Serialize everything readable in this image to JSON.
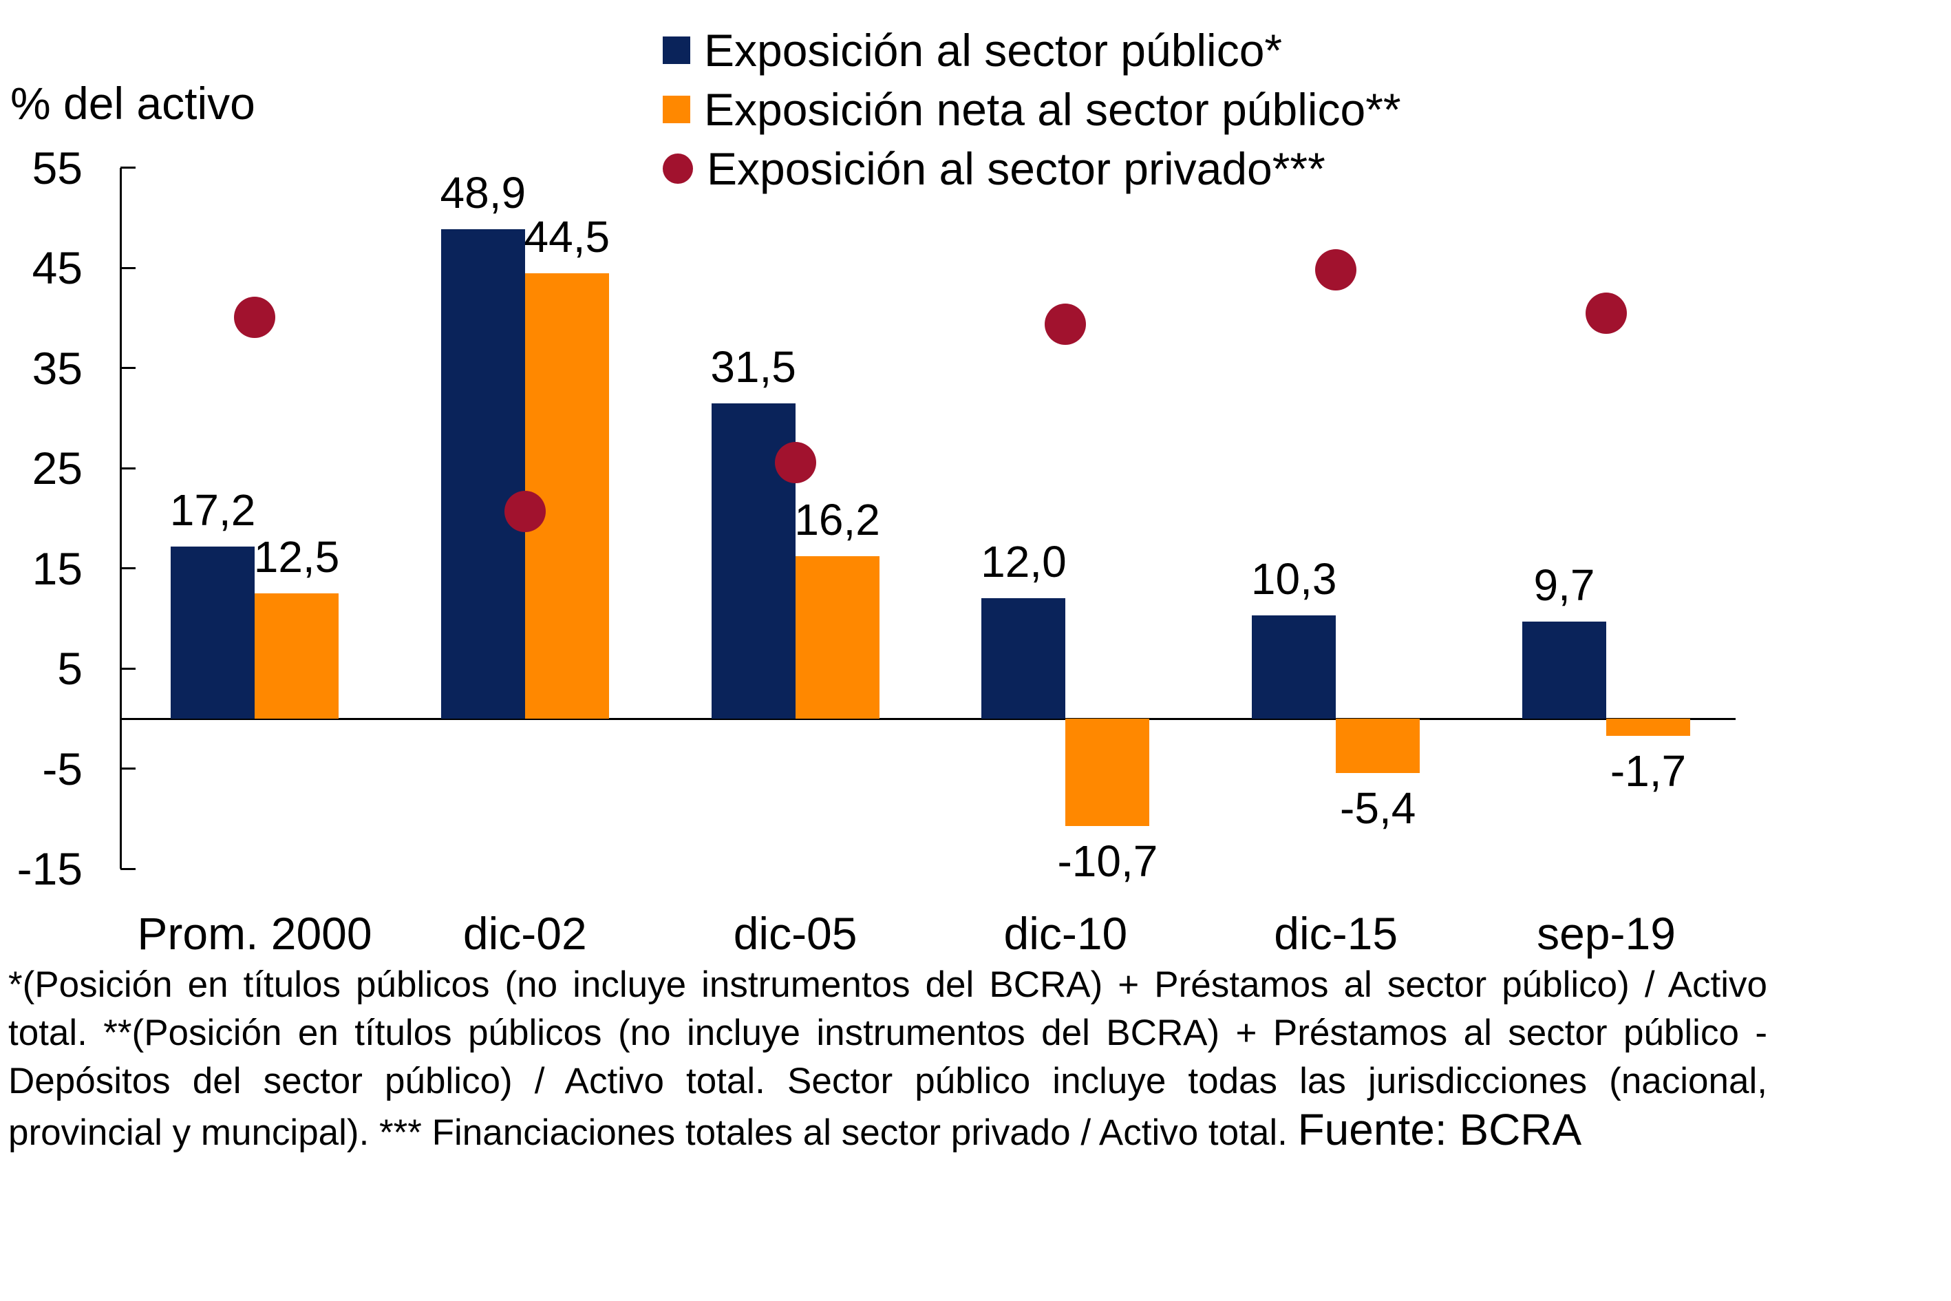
{
  "page": {
    "background": "#ffffff"
  },
  "chart_data": {
    "type": "bar",
    "title": "",
    "ylabel": "% del activo",
    "xlabel": "",
    "categories": [
      "Prom. 2000",
      "dic-02",
      "dic-05",
      "dic-10",
      "dic-15",
      "sep-19"
    ],
    "series": [
      {
        "name": "Exposición al sector público*",
        "type": "bar",
        "color": "#0a235a",
        "values": [
          17.2,
          48.9,
          31.5,
          12.0,
          10.3,
          9.7
        ],
        "labels": [
          "17,2",
          "48,9",
          "31,5",
          "12,0",
          "10,3",
          "9,7"
        ]
      },
      {
        "name": "Exposición neta al sector público**",
        "type": "bar",
        "color": "#ff8800",
        "values": [
          12.5,
          44.5,
          16.2,
          -10.7,
          -5.4,
          -1.7
        ],
        "labels": [
          "12,5",
          "44,5",
          "16,2",
          "-10,7",
          "-5,4",
          "-1,7"
        ]
      },
      {
        "name": "Exposición al sector privado***",
        "type": "point",
        "color": "#a1122e",
        "values": [
          40.1,
          20.7,
          25.6,
          39.4,
          44.8,
          40.5
        ]
      }
    ],
    "y_axis": {
      "min": -15,
      "max": 55,
      "tick_interval": 10,
      "ticks": [
        55,
        45,
        35,
        25,
        15,
        5,
        -5,
        -15
      ],
      "tick_labels": [
        "55",
        "45",
        "35",
        "25",
        "15",
        "5",
        "-5",
        "-15"
      ]
    },
    "grid": false,
    "legend_position": "top",
    "axis_color": "#000000"
  },
  "footnote": {
    "text": "*(Posición en títulos públicos (no incluye instrumentos del BCRA) + Préstamos al sector público) / Activo total. **(Posición en títulos públicos (no incluye instrumentos del BCRA) + Préstamos al sector público - Depósitos del sector público) / Activo total. Sector público incluye todas las jurisdicciones (nacional, provincial y muncipal). *** Financiaciones totales al sector privado / Activo total. ",
    "source": "Fuente: BCRA"
  }
}
